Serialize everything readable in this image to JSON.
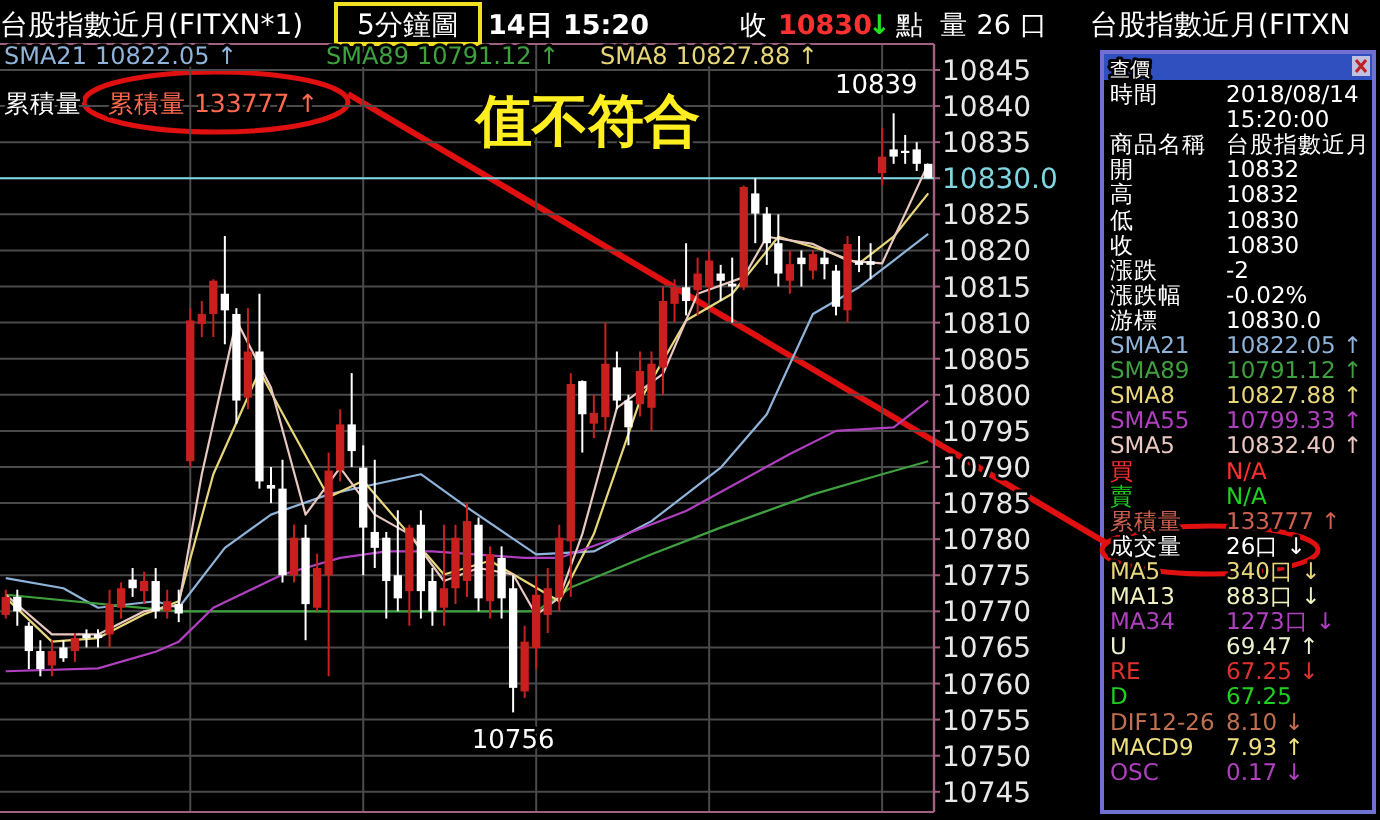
{
  "chart_data": {
    "type": "candlestick",
    "title": "台股指數近月(FITXN*1)",
    "subtitle": "5分鐘圖",
    "categories": [
      null,
      null,
      null,
      null,
      null,
      null,
      null,
      null,
      null,
      null,
      null,
      null,
      null,
      null,
      null,
      null,
      null,
      null,
      null,
      null,
      null,
      null,
      null,
      null,
      null,
      null,
      null,
      null,
      null,
      null,
      null,
      null,
      null,
      null,
      null,
      null,
      null,
      null,
      null,
      null,
      null,
      null,
      null,
      null,
      null,
      null,
      null,
      null,
      null,
      null,
      null,
      null,
      null,
      null,
      null,
      null,
      null,
      null,
      null,
      null,
      null,
      null,
      null,
      null,
      null,
      null,
      null,
      null,
      null,
      null,
      null,
      null,
      null,
      null,
      null,
      null,
      null,
      null,
      null,
      null,
      null
    ],
    "ohlc": [
      [
        10769.5,
        10773,
        10769,
        10772
      ],
      [
        10772,
        10773,
        10768,
        10770
      ],
      [
        10768,
        10768.5,
        10762,
        10764.5
      ],
      [
        10764.5,
        10766,
        10761,
        10762
      ],
      [
        10762.5,
        10766,
        10761,
        10764.5
      ],
      [
        10765,
        10766,
        10763,
        10763.5
      ],
      [
        10764.5,
        10767,
        10763,
        10766.3
      ],
      [
        10766.8,
        10767.5,
        10765,
        10766.3
      ],
      [
        10766.8,
        10767.5,
        10765,
        10766.3
      ],
      [
        10766.8,
        10773,
        10765,
        10771
      ],
      [
        10770.5,
        10774,
        10769,
        10773.2
      ],
      [
        10774.4,
        10776,
        10772,
        10773.2
      ],
      [
        10772.8,
        10775.5,
        10771,
        10774.2
      ],
      [
        10774.2,
        10776,
        10769,
        10770
      ],
      [
        10770,
        10773,
        10769,
        10771.4
      ],
      [
        10771,
        10773,
        10768.5,
        10769.7
      ],
      [
        10790.8,
        10812,
        10790,
        10810.3
      ],
      [
        10809.8,
        10813,
        10808,
        10811.2
      ],
      [
        10811.2,
        10816,
        10808,
        10815.8
      ],
      [
        10814,
        10822,
        10807,
        10811.7
      ],
      [
        10811.2,
        10812,
        10796,
        10799.2
      ],
      [
        10799.6,
        10812,
        10798,
        10806
      ],
      [
        10806,
        10814,
        10787,
        10788
      ],
      [
        10787.5,
        10790,
        10785,
        10787
      ],
      [
        10787,
        10791,
        10774,
        10775
      ],
      [
        10775,
        10782,
        10774,
        10780.2
      ],
      [
        10780.2,
        10782,
        10766,
        10771
      ],
      [
        10770.5,
        10778,
        10770,
        10776
      ],
      [
        10775,
        10792,
        10761,
        10789.5
      ],
      [
        10789.5,
        10798,
        10788,
        10795.9
      ],
      [
        10795.9,
        10803,
        10790,
        10792.2
      ],
      [
        10789.9,
        10793,
        10775,
        10781.6
      ],
      [
        10781,
        10791,
        10776,
        10778.8
      ],
      [
        10780.2,
        10781,
        10769,
        10774.2
      ],
      [
        10775,
        10784,
        10770,
        10771.8
      ],
      [
        10772.8,
        10782,
        10768,
        10781.6
      ],
      [
        10782,
        10784,
        10769,
        10772.8
      ],
      [
        10774.2,
        10776,
        10768,
        10770
      ],
      [
        10770.5,
        10782,
        10768,
        10773.2
      ],
      [
        10773.2,
        10782,
        10771,
        10780.2
      ],
      [
        10774.2,
        10785,
        10772,
        10782.5
      ],
      [
        10782,
        10783,
        10770,
        10771.8
      ],
      [
        10771.4,
        10779,
        10769,
        10777.9
      ],
      [
        10777.4,
        10779,
        10769,
        10771.8
      ],
      [
        10773.2,
        10775,
        10756,
        10759.4
      ],
      [
        10758.9,
        10768,
        10758,
        10765.8
      ],
      [
        10764.9,
        10775,
        10762,
        10772.3
      ],
      [
        10769.5,
        10776,
        10767,
        10773.2
      ],
      [
        10771.9,
        10782,
        10770,
        10780.2
      ],
      [
        10779.7,
        10803,
        10772,
        10801.5
      ],
      [
        10801.9,
        10802,
        10792,
        10797.3
      ],
      [
        10796,
        10800,
        10794,
        10797.5
      ],
      [
        10796.9,
        10810,
        10795,
        10804.3
      ],
      [
        10803.8,
        10806,
        10798,
        10799.2
      ],
      [
        10799.2,
        10800,
        10793,
        10795.5
      ],
      [
        10798.7,
        10806,
        10797,
        10803.3
      ],
      [
        10798.2,
        10806,
        10795,
        10804.3
      ],
      [
        10803.8,
        10815,
        10800,
        10813
      ],
      [
        10812.6,
        10816,
        10810,
        10814.9
      ],
      [
        10814.9,
        10821,
        10811,
        10813
      ],
      [
        10814.5,
        10819,
        10811,
        10816.8
      ],
      [
        10814.9,
        10820,
        10813,
        10818.6
      ],
      [
        10816.8,
        10818,
        10813,
        10815.8
      ],
      [
        10815.4,
        10819,
        10810,
        10815
      ],
      [
        10814.9,
        10829,
        10814.5,
        10828.8
      ],
      [
        10827.9,
        10830,
        10821,
        10825.1
      ],
      [
        10825.1,
        10826,
        10818,
        10821
      ],
      [
        10821,
        10825,
        10815,
        10816.8
      ],
      [
        10815.8,
        10820,
        10814,
        10818.1
      ],
      [
        10819,
        10820,
        10815,
        10818.1
      ],
      [
        10817.2,
        10820,
        10816,
        10819.5
      ],
      [
        10819,
        10820,
        10816,
        10818.1
      ],
      [
        10817.2,
        10818,
        10811,
        10812.2
      ],
      [
        10811.7,
        10822,
        10810,
        10820.9
      ],
      [
        10818.5,
        10822,
        10817,
        10818
      ],
      [
        10818.5,
        10821,
        10816,
        10818
      ],
      [
        10830.7,
        10837,
        10829,
        10833
      ],
      [
        10834,
        10839,
        10832,
        10833
      ],
      [
        10833.8,
        10836,
        10832,
        10833.5
      ],
      [
        10834,
        10835,
        10831,
        10832
      ],
      [
        10832,
        10832,
        10830,
        10830
      ]
    ],
    "series": [
      {
        "name": "SMA21",
        "type": "line",
        "color": "#8fb3d9",
        "values": [
          10774.6,
          null,
          null,
          null,
          null,
          10773.2,
          null,
          null,
          10770.5,
          null,
          null,
          null,
          null,
          10771.4,
          null,
          10770.5,
          null,
          null,
          null,
          10778.8,
          null,
          null,
          null,
          10783.4,
          null,
          null,
          null,
          null,
          10786.2,
          null,
          null,
          null,
          10787.6,
          null,
          null,
          null,
          10789,
          null,
          null,
          null,
          10784.4,
          null,
          null,
          null,
          null,
          null,
          10777.9,
          null,
          null,
          null,
          null,
          10778.3,
          null,
          null,
          null,
          null,
          10782.5,
          null,
          null,
          null,
          null,
          null,
          10789.9,
          null,
          null,
          null,
          10797.3,
          null,
          null,
          null,
          10811.2,
          null,
          null,
          null,
          10814.9,
          null,
          null,
          10818.6,
          null,
          null,
          10822.3
        ]
      },
      {
        "name": "SMA89",
        "type": "line",
        "color": "#3fa03f",
        "values": [
          10772.3,
          null,
          null,
          null,
          null,
          null,
          null,
          null,
          null,
          null,
          null,
          null,
          null,
          null,
          null,
          10770,
          null,
          null,
          null,
          null,
          null,
          null,
          null,
          null,
          null,
          null,
          null,
          null,
          null,
          null,
          null,
          null,
          null,
          null,
          null,
          null,
          null,
          null,
          null,
          null,
          null,
          null,
          null,
          null,
          null,
          null,
          10770,
          null,
          null,
          10773.3,
          null,
          null,
          null,
          null,
          null,
          null,
          10777.9,
          null,
          null,
          null,
          null,
          null,
          10781.6,
          null,
          null,
          null,
          null,
          null,
          null,
          null,
          10786.2,
          null,
          null,
          null,
          null,
          null,
          10789,
          null,
          null,
          null,
          10790.8
        ]
      },
      {
        "name": "SMA8",
        "type": "line",
        "color": "#e8d77a",
        "values": [
          10771.9,
          null,
          null,
          null,
          10765.8,
          null,
          null,
          null,
          10766.3,
          null,
          null,
          null,
          10769.6,
          null,
          null,
          10771.4,
          null,
          null,
          10789,
          null,
          null,
          null,
          10803.3,
          null,
          null,
          10794.5,
          null,
          null,
          10785.8,
          null,
          null,
          10788.1,
          null,
          null,
          10782.5,
          null,
          null,
          null,
          10775.1,
          null,
          null,
          null,
          10777,
          null,
          null,
          10774.2,
          null,
          null,
          10771.4,
          null,
          null,
          10780.7,
          null,
          null,
          null,
          10799.2,
          null,
          null,
          null,
          10810.3,
          null,
          null,
          null,
          10814,
          null,
          null,
          null,
          10821.9,
          null,
          null,
          null,
          10820,
          null,
          null,
          10818.2,
          null,
          null,
          10821.9,
          null,
          null,
          10827.9
        ]
      },
      {
        "type": "line",
        "color": "#b040c0",
        "values": [
          10761.7,
          null,
          null,
          null,
          null,
          null,
          null,
          null,
          10762.1,
          null,
          null,
          null,
          null,
          10764.4,
          null,
          10765.8,
          null,
          null,
          10770.5,
          null,
          null,
          null,
          null,
          null,
          10775.1,
          null,
          null,
          null,
          null,
          10777.4,
          null,
          null,
          null,
          10778.3,
          null,
          null,
          null,
          10778.3,
          null,
          null,
          null,
          null,
          null,
          null,
          null,
          10777.4,
          null,
          null,
          10777.4,
          null,
          null,
          null,
          null,
          10780.2,
          null,
          null,
          null,
          null,
          null,
          10783.9,
          null,
          null,
          null,
          null,
          null,
          null,
          null,
          null,
          10791.8,
          null,
          null,
          null,
          10795,
          null,
          null,
          null,
          null,
          10795.5,
          null,
          null,
          10799.2
        ]
      },
      {
        "type": "line",
        "color": "#e8c8c0",
        "values": [
          10772.3,
          null,
          null,
          null,
          10766.8,
          null,
          null,
          null,
          10766.8,
          null,
          null,
          null,
          10770,
          null,
          null,
          10770.9,
          null,
          10789,
          null,
          null,
          10810.3,
          null,
          null,
          10801,
          null,
          null,
          10783.4,
          null,
          null,
          10789.9,
          null,
          null,
          10783.4,
          null,
          null,
          10780.7,
          null,
          null,
          10774.2,
          null,
          null,
          10776,
          null,
          null,
          10775.1,
          null,
          10769.5,
          null,
          10771.9,
          null,
          10780.7,
          null,
          null,
          10798.2,
          null,
          null,
          null,
          10802.9,
          null,
          null,
          10814,
          null,
          null,
          null,
          10816.3,
          null,
          10821.9,
          null,
          null,
          null,
          10820.9,
          null,
          null,
          10818.6,
          null,
          null,
          10818.2,
          null,
          10825.1,
          null,
          10832
        ]
      }
    ],
    "ylim": [
      10742.2,
      10848.6
    ],
    "yticks": [
      10745,
      10750,
      10755,
      10760,
      10765,
      10770,
      10775,
      10780,
      10785,
      10790,
      10795,
      10800,
      10805,
      10810,
      10815,
      10820,
      10825,
      {
        "value": 10830,
        "label": null
      },
      10835,
      10840,
      10845
    ],
    "tick_labels": "y",
    "grid": true,
    "legend": "top",
    "ref_lines": [
      {
        "axis": "y",
        "value": 10830,
        "label": "10830.0",
        "color": "#7fd6e0"
      }
    ],
    "annotations": [
      "14日 15:20",
      "收",
      "10830",
      "↓",
      "點",
      "量 26 口",
      "10822.05 ↑",
      "10791.12 ↑",
      "10827.88 ↑",
      "累積量",
      "累積量 133777 ↑",
      "值不符合",
      "10839",
      "10756",
      "台股指數近月(FITXN",
      "查價",
      "時間",
      "2018/08/14",
      "15:20:00",
      "商品名稱",
      "台股指數近月",
      "開",
      "10832",
      "高",
      "10832",
      "低",
      "10830",
      "收",
      "10830",
      "漲跌",
      "-2",
      "漲跌幅",
      "-0.02%",
      "游標",
      "10830.0",
      "10822.05 ↑",
      "10791.12 ↑",
      "10827.88 ↑",
      "10799.33 ↑",
      "10832.40 ↑",
      "買",
      "N/A",
      "賣",
      "N/A",
      "累積量",
      "133777 ↑",
      "成交量",
      "26口 ↓",
      "MA5",
      "340口 ↓",
      "MA13",
      "883口 ↓",
      "MA34",
      "1273口 ↓",
      "U",
      "69.47 ↑",
      "RE",
      "67.25 ↓",
      "D",
      "67.25",
      "DIF12-26",
      "8.10 ↓",
      "MACD9",
      "7.93 ↑",
      "OSC",
      "0.17 ↓",
      "SMA21",
      "SMA89",
      "SMA8",
      "SMA55",
      "SMA5"
    ]
  }
}
